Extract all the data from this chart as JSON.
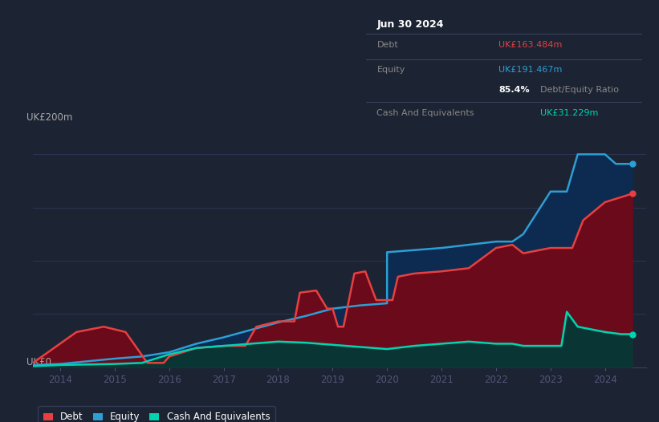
{
  "bg_color": "#1c2333",
  "plot_bg_color": "#1c2333",
  "grid_color": "#2a3050",
  "title_box": {
    "date": "Jun 30 2024",
    "debt_label": "Debt",
    "debt_value": "UK£163.484m",
    "equity_label": "Equity",
    "equity_value": "UK£191.467m",
    "ratio_value": "85.4%",
    "ratio_label": "Debt/Equity Ratio",
    "cash_label": "Cash And Equivalents",
    "cash_value": "UK£31.229m"
  },
  "ylabel": "UK£200m",
  "ylabel0": "UK£0",
  "ylim": [
    0,
    230
  ],
  "debt_color": "#e84040",
  "equity_color": "#2b9fd6",
  "cash_color": "#00d4b0",
  "debt_fill_color": "#6b0a1a",
  "equity_fill_color": "#0d2a50",
  "cash_fill_color": "#0a3535",
  "debt_data": [
    [
      2013.5,
      4
    ],
    [
      2014.3,
      33
    ],
    [
      2014.8,
      38
    ],
    [
      2015.2,
      33
    ],
    [
      2015.6,
      4
    ],
    [
      2015.9,
      4
    ],
    [
      2016.0,
      10
    ],
    [
      2016.5,
      18
    ],
    [
      2017.0,
      20
    ],
    [
      2017.4,
      20
    ],
    [
      2017.6,
      38
    ],
    [
      2018.0,
      43
    ],
    [
      2018.3,
      43
    ],
    [
      2018.4,
      70
    ],
    [
      2018.7,
      72
    ],
    [
      2018.9,
      55
    ],
    [
      2019.0,
      55
    ],
    [
      2019.1,
      38
    ],
    [
      2019.2,
      38
    ],
    [
      2019.4,
      88
    ],
    [
      2019.6,
      90
    ],
    [
      2019.8,
      63
    ],
    [
      2020.0,
      63
    ],
    [
      2020.1,
      63
    ],
    [
      2020.2,
      85
    ],
    [
      2020.5,
      88
    ],
    [
      2021.0,
      90
    ],
    [
      2021.5,
      93
    ],
    [
      2022.0,
      112
    ],
    [
      2022.3,
      115
    ],
    [
      2022.5,
      107
    ],
    [
      2023.0,
      112
    ],
    [
      2023.4,
      112
    ],
    [
      2023.6,
      138
    ],
    [
      2024.0,
      155
    ],
    [
      2024.5,
      163
    ]
  ],
  "equity_data": [
    [
      2013.5,
      2
    ],
    [
      2014.0,
      3
    ],
    [
      2015.0,
      8
    ],
    [
      2015.5,
      10
    ],
    [
      2016.0,
      14
    ],
    [
      2016.5,
      22
    ],
    [
      2017.0,
      28
    ],
    [
      2017.5,
      35
    ],
    [
      2018.0,
      42
    ],
    [
      2018.5,
      48
    ],
    [
      2019.0,
      55
    ],
    [
      2019.5,
      58
    ],
    [
      2020.0,
      60
    ],
    [
      2020.0,
      108
    ],
    [
      2020.5,
      110
    ],
    [
      2021.0,
      112
    ],
    [
      2021.5,
      115
    ],
    [
      2022.0,
      118
    ],
    [
      2022.3,
      118
    ],
    [
      2022.5,
      125
    ],
    [
      2023.0,
      165
    ],
    [
      2023.3,
      165
    ],
    [
      2023.5,
      200
    ],
    [
      2024.0,
      200
    ],
    [
      2024.2,
      191
    ],
    [
      2024.5,
      191
    ]
  ],
  "cash_data": [
    [
      2013.5,
      1
    ],
    [
      2014.0,
      2
    ],
    [
      2015.0,
      3
    ],
    [
      2015.5,
      4
    ],
    [
      2016.0,
      12
    ],
    [
      2016.5,
      18
    ],
    [
      2017.0,
      20
    ],
    [
      2017.5,
      22
    ],
    [
      2018.0,
      24
    ],
    [
      2018.5,
      23
    ],
    [
      2019.0,
      21
    ],
    [
      2019.5,
      19
    ],
    [
      2020.0,
      17
    ],
    [
      2020.5,
      20
    ],
    [
      2021.0,
      22
    ],
    [
      2021.5,
      24
    ],
    [
      2022.0,
      22
    ],
    [
      2022.3,
      22
    ],
    [
      2022.5,
      20
    ],
    [
      2023.0,
      20
    ],
    [
      2023.2,
      20
    ],
    [
      2023.3,
      52
    ],
    [
      2023.5,
      38
    ],
    [
      2024.0,
      33
    ],
    [
      2024.3,
      31
    ],
    [
      2024.5,
      31
    ]
  ],
  "xticks": [
    2014,
    2015,
    2016,
    2017,
    2018,
    2019,
    2020,
    2021,
    2022,
    2023,
    2024
  ],
  "xticklabels": [
    "2014",
    "2015",
    "2016",
    "2017",
    "2018",
    "2019",
    "2020",
    "2021",
    "2022",
    "2023",
    "2024"
  ],
  "xlim": [
    2013.5,
    2024.75
  ]
}
